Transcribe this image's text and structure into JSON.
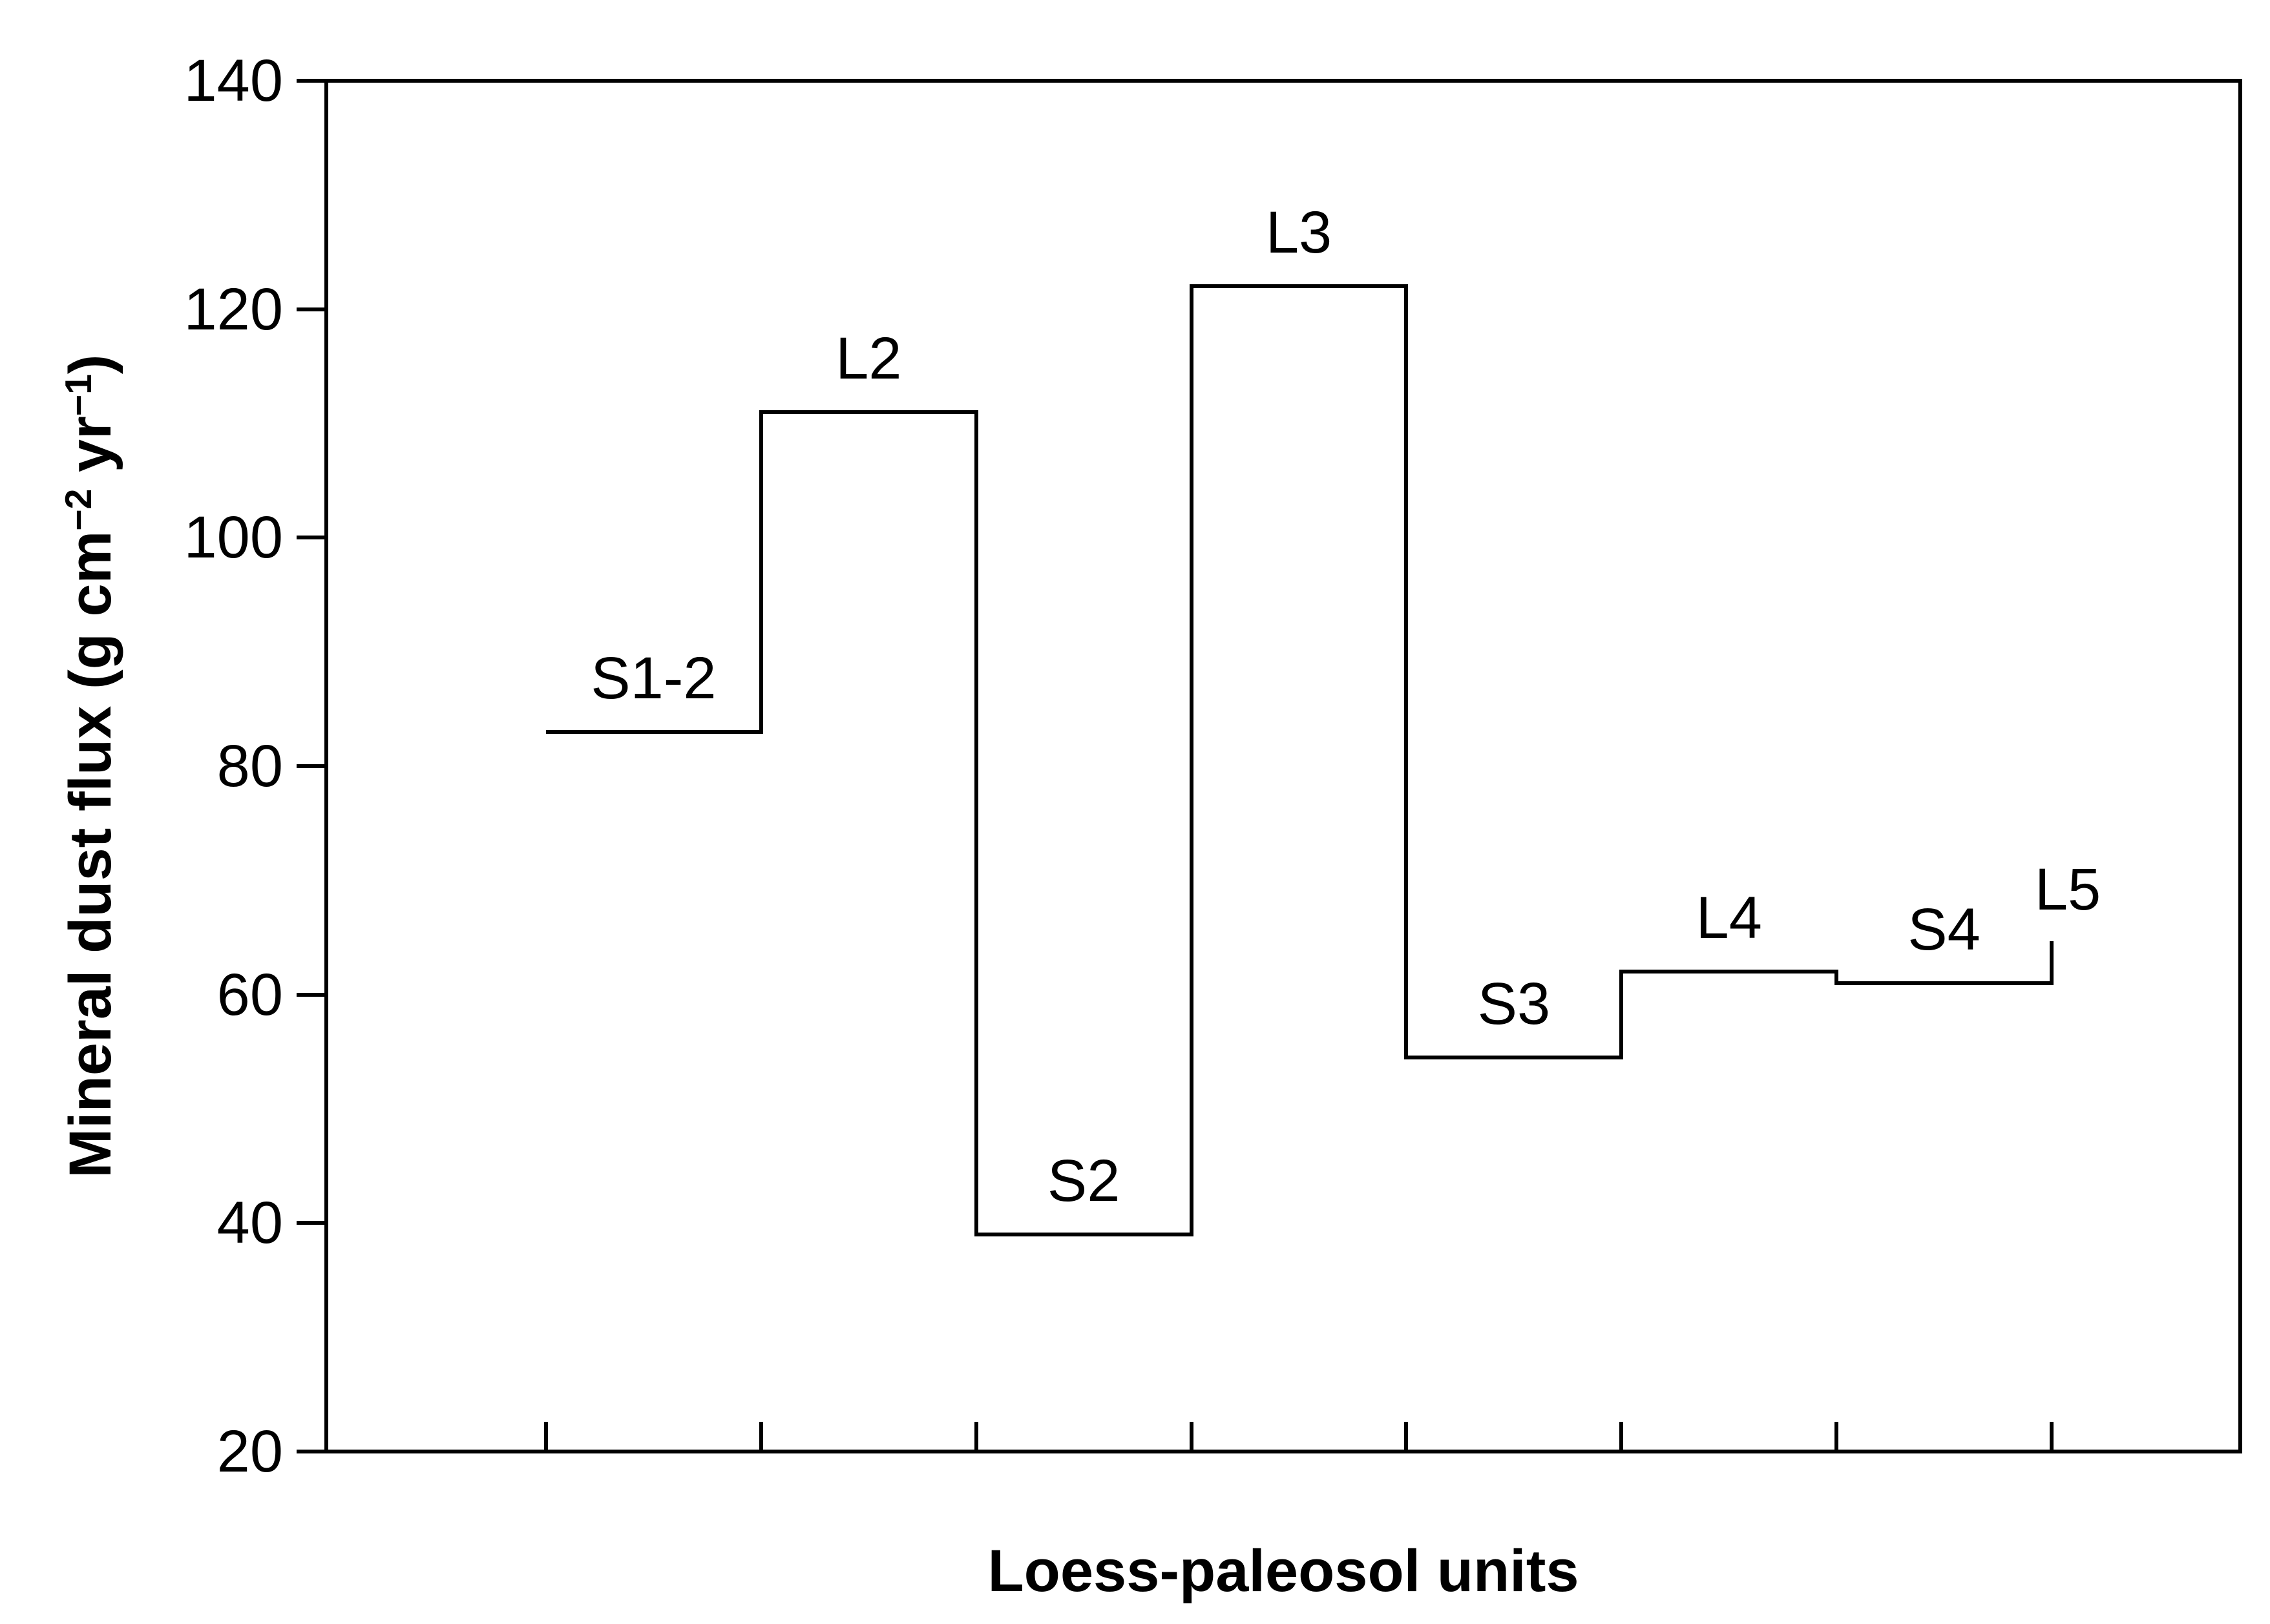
{
  "figure": {
    "background": "#ffffff",
    "ink": "#000000"
  },
  "chart_data": {
    "type": "step",
    "title": "",
    "xlabel": "Loess-paleosol units",
    "ylabel": "Mineral dust flux (g cm−2 yr−1)",
    "ylabel_parts": [
      {
        "text": "Mineral dust flux (g cm"
      },
      {
        "text": "−2",
        "sup": true
      },
      {
        "text": " yr",
        "sup": false
      },
      {
        "text": "−1",
        "sup": true
      },
      {
        "text": ")",
        "sup": false
      }
    ],
    "ylim": [
      20,
      140
    ],
    "y_ticks": [
      140,
      120,
      100,
      80,
      60,
      40,
      20
    ],
    "x_tick_count": 8,
    "grid": "off",
    "legend": "none",
    "units": [
      {
        "label": "S1-2",
        "value": 83
      },
      {
        "label": "L2",
        "value": 111
      },
      {
        "label": "S2",
        "value": 39
      },
      {
        "label": "L3",
        "value": 122
      },
      {
        "label": "S3",
        "value": 54.5
      },
      {
        "label": "L4",
        "value": 62
      },
      {
        "label": "S4",
        "value": 61
      },
      {
        "label": "L5",
        "value": 64.5
      }
    ]
  }
}
